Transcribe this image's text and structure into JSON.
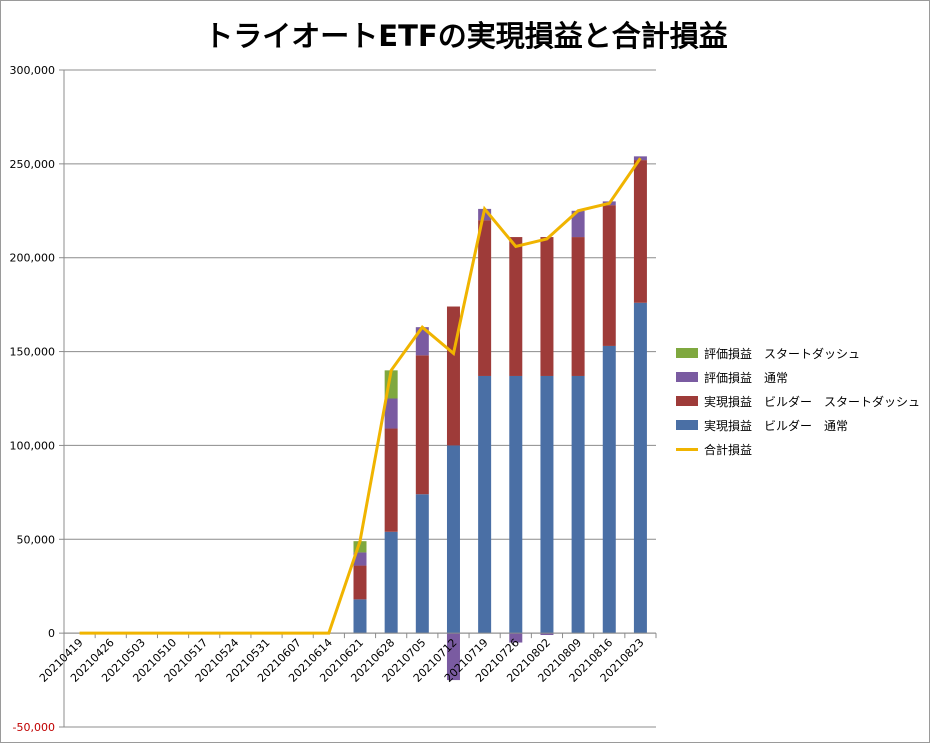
{
  "chart_data": {
    "type": "bar",
    "title": "トライオートETFの実現損益と合計損益",
    "xlabel": "",
    "ylabel": "",
    "ylim": [
      -50000,
      300000
    ],
    "yticks": [
      -50000,
      0,
      50000,
      100000,
      150000,
      200000,
      250000,
      300000
    ],
    "ytick_labels": [
      "-50,000",
      "0",
      "50,000",
      "100,000",
      "150,000",
      "200,000",
      "250,000",
      "300,000"
    ],
    "grid": true,
    "legend_position": "right",
    "categories": [
      "20210419",
      "20210426",
      "20210503",
      "20210510",
      "20210517",
      "20210524",
      "20210531",
      "20210607",
      "20210614",
      "20210621",
      "20210628",
      "20210705",
      "20210712",
      "20210719",
      "20210726",
      "20210802",
      "20210809",
      "20210816",
      "20210823"
    ],
    "series": [
      {
        "name": "実現損益 ビルダー 通常",
        "kind": "bar",
        "color": "#4a6fa5",
        "values": [
          0,
          0,
          0,
          0,
          0,
          0,
          0,
          0,
          0,
          18000,
          54000,
          74000,
          100000,
          137000,
          137000,
          137000,
          137000,
          153000,
          176000
        ]
      },
      {
        "name": "実現損益 ビルダー スタートダッシュ",
        "kind": "bar",
        "color": "#9e3b39",
        "values": [
          0,
          0,
          0,
          0,
          0,
          0,
          0,
          0,
          0,
          18000,
          55000,
          74000,
          74000,
          83000,
          74000,
          74000,
          74000,
          75000,
          76000
        ]
      },
      {
        "name": "評価損益 通常",
        "kind": "bar",
        "color": "#7a5ba1",
        "values": [
          0,
          0,
          0,
          0,
          0,
          0,
          0,
          0,
          0,
          7000,
          16000,
          15000,
          -25000,
          6000,
          -5000,
          -1000,
          14000,
          2000,
          2000
        ]
      },
      {
        "name": "評価損益 スタートダッシュ",
        "kind": "bar",
        "color": "#7fa83f",
        "values": [
          0,
          0,
          0,
          0,
          0,
          0,
          0,
          0,
          0,
          6000,
          15000,
          0,
          0,
          0,
          0,
          0,
          0,
          0,
          0
        ]
      },
      {
        "name": "合計損益",
        "kind": "line",
        "color": "#f0b400",
        "values": [
          0,
          0,
          0,
          0,
          0,
          0,
          0,
          0,
          0,
          49000,
          140000,
          163000,
          149000,
          226000,
          206000,
          210000,
          225000,
          229000,
          253000
        ]
      }
    ],
    "legend": [
      {
        "label": "評価損益　スタートダッシュ",
        "color": "#7fa83f",
        "kind": "bar"
      },
      {
        "label": "評価損益　通常",
        "color": "#7a5ba1",
        "kind": "bar"
      },
      {
        "label": "実現損益　ビルダー　スタートダッシュ",
        "color": "#9e3b39",
        "kind": "bar"
      },
      {
        "label": "実現損益　ビルダー　通常",
        "color": "#4a6fa5",
        "kind": "bar"
      },
      {
        "label": "合計損益",
        "color": "#f0b400",
        "kind": "line"
      }
    ],
    "negative_tick_color": "#c00000"
  }
}
